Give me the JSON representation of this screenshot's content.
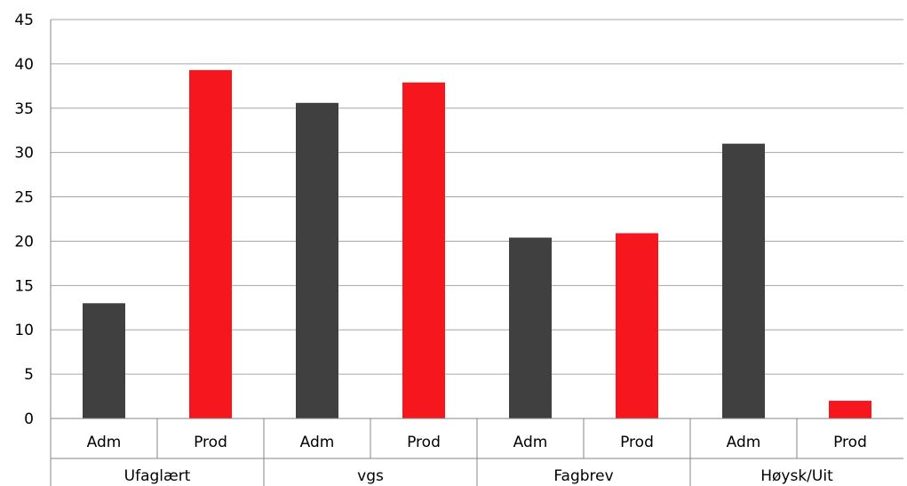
{
  "chart_data": {
    "type": "bar",
    "title": "",
    "xlabel": "",
    "ylabel": "",
    "ylim": [
      0,
      45
    ],
    "yticks": [
      0,
      5,
      10,
      15,
      20,
      25,
      30,
      35,
      40,
      45
    ],
    "grid": true,
    "legend": "none",
    "groups": [
      "Ufaglært",
      "vgs",
      "Fagbrev",
      "Høysk/Uit"
    ],
    "subcategories": [
      "Adm",
      "Prod",
      "Adm",
      "Prod",
      "Adm",
      "Prod",
      "Adm",
      "Prod"
    ],
    "values": [
      13.0,
      39.3,
      35.6,
      37.9,
      20.4,
      20.9,
      31.0,
      2.0
    ],
    "colors": {
      "Adm": "#404040",
      "Prod": "#f5161e"
    }
  }
}
